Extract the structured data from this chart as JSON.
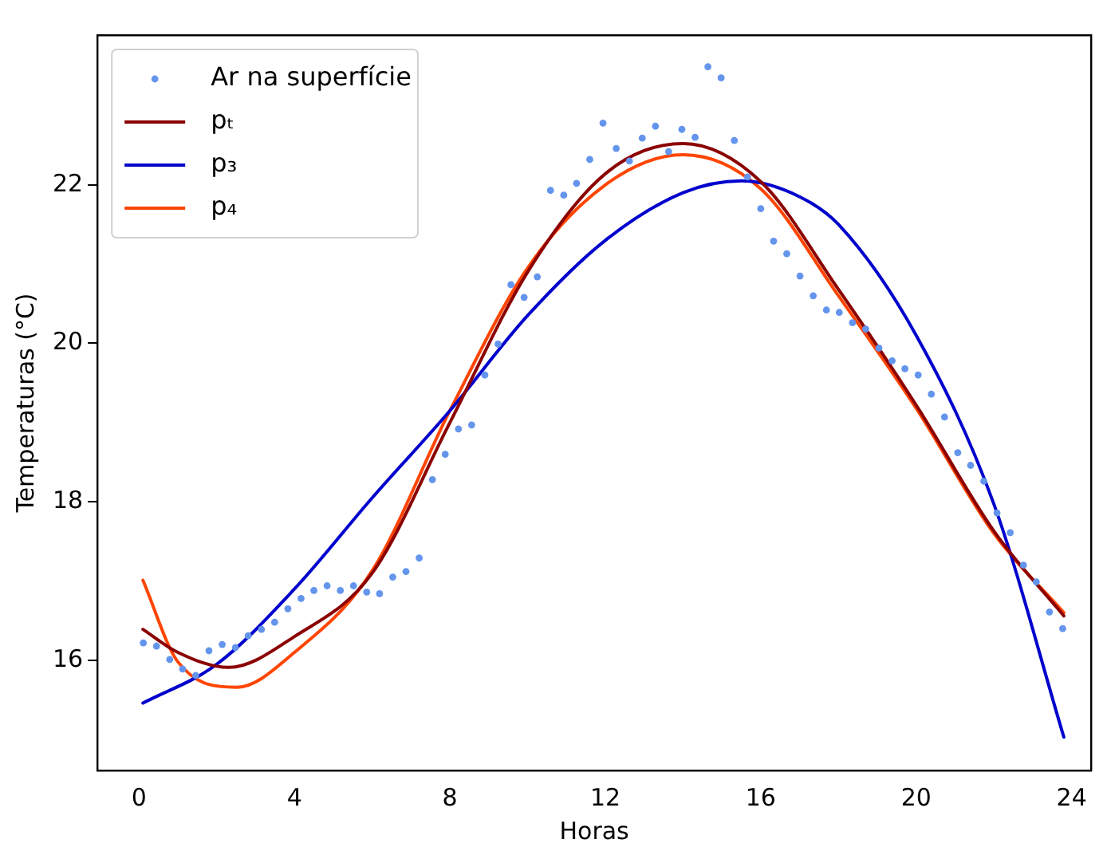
{
  "chart_data": {
    "type": "line",
    "xlabel": "Horas",
    "ylabel": "Temperaturas (°C)",
    "xlim": [
      -1.07,
      24.5
    ],
    "ylim": [
      14.61,
      23.89
    ],
    "xticks": [
      0,
      4,
      8,
      12,
      16,
      20,
      24
    ],
    "yticks": [
      16,
      18,
      20,
      22
    ],
    "grid": false,
    "legend": "top left",
    "line_style": "solid",
    "series": [
      {
        "name": "Ar na superfície",
        "type": "scatter",
        "marker": "circle",
        "color": "#6495ed",
        "x": [
          0.11,
          0.45,
          0.79,
          1.12,
          1.46,
          1.8,
          2.14,
          2.48,
          2.81,
          3.15,
          3.49,
          3.83,
          4.17,
          4.5,
          4.84,
          5.18,
          5.52,
          5.86,
          6.19,
          6.53,
          6.87,
          7.21,
          7.55,
          7.88,
          8.22,
          8.56,
          8.9,
          9.24,
          9.57,
          9.91,
          10.25,
          10.59,
          10.93,
          11.26,
          11.6,
          11.94,
          12.28,
          12.62,
          12.95,
          13.29,
          13.63,
          13.97,
          14.31,
          14.64,
          14.98,
          15.32,
          15.66,
          16.0,
          16.33,
          16.67,
          17.01,
          17.35,
          17.69,
          18.02,
          18.36,
          18.7,
          19.04,
          19.38,
          19.71,
          20.05,
          20.39,
          20.73,
          21.07,
          21.4,
          21.74,
          22.08,
          22.42,
          22.76,
          23.09,
          23.43,
          23.77
        ],
        "values": [
          16.22,
          16.18,
          16.01,
          15.89,
          15.81,
          16.12,
          16.2,
          16.16,
          16.31,
          16.39,
          16.48,
          16.65,
          16.78,
          16.88,
          16.94,
          16.88,
          16.94,
          16.86,
          16.84,
          17.05,
          17.12,
          17.29,
          18.28,
          18.6,
          18.92,
          18.97,
          19.6,
          19.99,
          20.74,
          20.58,
          20.84,
          21.93,
          21.87,
          22.02,
          22.32,
          22.78,
          22.46,
          22.3,
          22.59,
          22.74,
          22.42,
          22.7,
          22.6,
          23.49,
          23.35,
          22.56,
          22.1,
          21.7,
          21.29,
          21.13,
          20.85,
          20.6,
          20.42,
          20.39,
          20.26,
          20.18,
          19.94,
          19.78,
          19.68,
          19.6,
          19.36,
          19.07,
          18.62,
          18.46,
          18.26,
          17.86,
          17.61,
          17.2,
          16.99,
          16.61,
          16.4
        ]
      },
      {
        "name": "pₜ",
        "marker": "none",
        "color": "#8b0000",
        "x": [
          0.1,
          1,
          2.31,
          4,
          6,
          8,
          10,
          12,
          14,
          16,
          18,
          20,
          22,
          23.8
        ],
        "values": [
          16.39,
          16.1,
          15.91,
          16.3,
          17.1,
          19.0,
          20.9,
          22.14,
          22.52,
          22.04,
          20.68,
          19.22,
          17.63,
          16.56
        ]
      },
      {
        "name": "p₃",
        "marker": "none",
        "color": "#0000cd",
        "x": [
          0.1,
          2,
          4,
          6,
          8,
          10,
          12,
          14,
          15.5,
          17,
          18,
          20,
          22,
          23.8
        ],
        "values": [
          15.46,
          15.95,
          16.9,
          18.05,
          19.15,
          20.35,
          21.3,
          21.9,
          22.05,
          21.85,
          21.5,
          20.1,
          17.97,
          15.03
        ]
      },
      {
        "name": "p₄",
        "marker": "none",
        "color": "#ff4500",
        "x": [
          0.1,
          1,
          2.52,
          4,
          6,
          8,
          10,
          12,
          14,
          16,
          18,
          20,
          22,
          23.8
        ],
        "values": [
          17.01,
          15.98,
          15.66,
          16.1,
          17.13,
          19.15,
          20.95,
          22.0,
          22.38,
          21.95,
          20.6,
          19.18,
          17.6,
          16.6
        ]
      }
    ]
  }
}
